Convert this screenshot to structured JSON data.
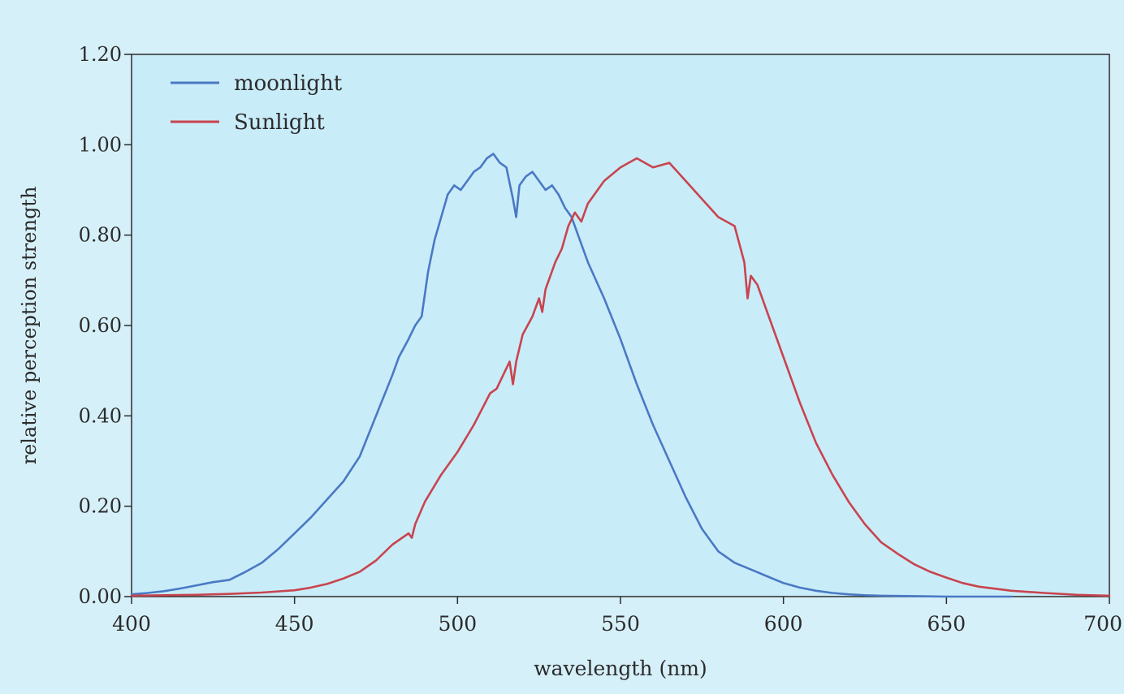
{
  "chart_data": {
    "type": "line",
    "title": "",
    "xlabel": "wavelength (nm)",
    "ylabel": "relative perception strength",
    "xlim": [
      400,
      700
    ],
    "ylim": [
      0,
      1.2
    ],
    "x_ticks": [
      400,
      450,
      500,
      550,
      600,
      650,
      700
    ],
    "x_tick_labels": [
      "400",
      "450",
      "500",
      "550",
      "600",
      "650",
      "700"
    ],
    "y_ticks": [
      0,
      0.2,
      0.4,
      0.6,
      0.8,
      1.0,
      1.2
    ],
    "y_tick_labels": [
      "0.00",
      "0.20",
      "0.40",
      "0.60",
      "0.80",
      "1.00",
      "1.20"
    ],
    "grid": false,
    "legend_position": "top-left",
    "colors": {
      "background": "#d6f0f9",
      "plot_area": "#c9ecf9",
      "axis": "#2b2b2b"
    },
    "series": [
      {
        "name": "moonlight",
        "color": "#4a79c4",
        "x": [
          400,
          405,
          410,
          415,
          420,
          425,
          430,
          435,
          440,
          445,
          450,
          455,
          460,
          465,
          470,
          475,
          480,
          482,
          485,
          487,
          489,
          491,
          493,
          495,
          497,
          499,
          501,
          503,
          505,
          507,
          509,
          511,
          513,
          515,
          517,
          518,
          519,
          521,
          523,
          525,
          527,
          529,
          531,
          533,
          535,
          537,
          540,
          545,
          550,
          555,
          560,
          565,
          570,
          575,
          580,
          585,
          590,
          595,
          600,
          605,
          610,
          615,
          620,
          625,
          630,
          640,
          650,
          660,
          670
        ],
        "y": [
          0.005,
          0.008,
          0.012,
          0.018,
          0.025,
          0.032,
          0.037,
          0.055,
          0.075,
          0.105,
          0.14,
          0.175,
          0.215,
          0.255,
          0.31,
          0.4,
          0.49,
          0.53,
          0.57,
          0.6,
          0.62,
          0.72,
          0.79,
          0.84,
          0.89,
          0.91,
          0.9,
          0.92,
          0.94,
          0.95,
          0.97,
          0.98,
          0.96,
          0.95,
          0.88,
          0.84,
          0.91,
          0.93,
          0.94,
          0.92,
          0.9,
          0.91,
          0.89,
          0.86,
          0.84,
          0.8,
          0.74,
          0.66,
          0.57,
          0.47,
          0.38,
          0.3,
          0.22,
          0.15,
          0.1,
          0.075,
          0.06,
          0.045,
          0.03,
          0.02,
          0.013,
          0.008,
          0.005,
          0.003,
          0.002,
          0.001,
          0.0,
          0.0,
          0.0
        ]
      },
      {
        "name": "Sunlight",
        "color": "#c8444e",
        "x": [
          400,
          410,
          420,
          430,
          440,
          450,
          455,
          460,
          465,
          470,
          475,
          480,
          485,
          486,
          487,
          490,
          495,
          500,
          505,
          510,
          512,
          514,
          516,
          517,
          518,
          520,
          523,
          525,
          526,
          527,
          528,
          530,
          532,
          534,
          536,
          538,
          540,
          545,
          550,
          555,
          560,
          565,
          570,
          575,
          580,
          585,
          588,
          589,
          590,
          592,
          595,
          600,
          605,
          610,
          615,
          620,
          625,
          630,
          635,
          640,
          645,
          650,
          655,
          660,
          670,
          680,
          690,
          700
        ],
        "y": [
          0.002,
          0.003,
          0.004,
          0.006,
          0.009,
          0.014,
          0.02,
          0.028,
          0.04,
          0.055,
          0.08,
          0.115,
          0.14,
          0.13,
          0.16,
          0.21,
          0.27,
          0.32,
          0.38,
          0.45,
          0.46,
          0.49,
          0.52,
          0.47,
          0.52,
          0.58,
          0.62,
          0.66,
          0.63,
          0.68,
          0.7,
          0.74,
          0.77,
          0.82,
          0.85,
          0.83,
          0.87,
          0.92,
          0.95,
          0.97,
          0.95,
          0.96,
          0.92,
          0.88,
          0.84,
          0.82,
          0.74,
          0.66,
          0.71,
          0.69,
          0.63,
          0.53,
          0.43,
          0.34,
          0.27,
          0.21,
          0.16,
          0.12,
          0.095,
          0.072,
          0.055,
          0.042,
          0.03,
          0.022,
          0.013,
          0.008,
          0.004,
          0.002
        ]
      }
    ]
  }
}
